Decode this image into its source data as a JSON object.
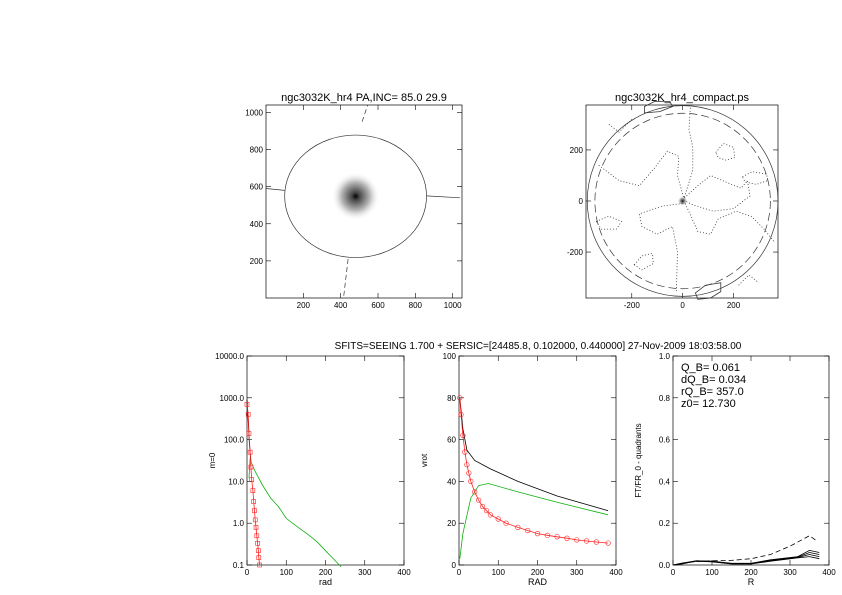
{
  "supertitle": "SFITS=SEEING 1.700 + SERSIC=[24485.8, 0.102000, 0.440000]  27-Nov-2009 18:03:58.00",
  "colors": {
    "axis": "#000000",
    "red": "#ff2020",
    "green": "#10b010",
    "black": "#000000"
  },
  "chart_data": [
    {
      "id": "p1",
      "type": "image-contour",
      "title": "ngc3032K_hr4 PA,INC= 85.0 29.9",
      "xlim": [
        0,
        1050
      ],
      "ylim": [
        0,
        1040
      ],
      "xticks": [
        "200",
        "400",
        "600",
        "800",
        "1000"
      ],
      "yticks": [
        "200",
        "400",
        "600",
        "800",
        "1000"
      ],
      "source_center": [
        480,
        548
      ],
      "ellipse": {
        "cx": 480,
        "cy": 548,
        "rx": 380,
        "ry": 330
      },
      "lines": [
        {
          "style": "solid",
          "points": [
            [
              0,
              590
            ],
            [
              100,
              580
            ]
          ]
        },
        {
          "style": "solid",
          "points": [
            [
              860,
              550
            ],
            [
              1040,
              540
            ]
          ]
        },
        {
          "style": "dashed",
          "points": [
            [
              515,
              950
            ],
            [
              545,
              1040
            ]
          ]
        },
        {
          "style": "dashed",
          "points": [
            [
              440,
              210
            ],
            [
              415,
              0
            ]
          ]
        }
      ]
    },
    {
      "id": "p2",
      "type": "contour",
      "title": "ngc3032K_hr4_compact.ps",
      "xlim": [
        -380,
        375
      ],
      "ylim": [
        -380,
        376
      ],
      "xticks": [
        "-200",
        "0",
        "200"
      ],
      "yticks": [
        "-200",
        "0",
        "200"
      ],
      "circles": [
        {
          "style": "solid",
          "r": 375
        },
        {
          "style": "dashed",
          "r": 345
        }
      ],
      "contours": [
        {
          "style": "dotted",
          "points": [
            [
              -330,
              140
            ],
            [
              -250,
              80
            ],
            [
              -170,
              60
            ],
            [
              -110,
              130
            ],
            [
              -60,
              195
            ],
            [
              -15,
              175
            ],
            [
              -20,
              100
            ],
            [
              5,
              10
            ],
            [
              60,
              60
            ],
            [
              110,
              100
            ],
            [
              180,
              70
            ],
            [
              230,
              50
            ],
            [
              255,
              80
            ],
            [
              265,
              20
            ],
            [
              200,
              -30
            ],
            [
              120,
              -40
            ],
            [
              40,
              -15
            ],
            [
              10,
              0
            ]
          ]
        },
        {
          "style": "dotted",
          "points": [
            [
              30,
              365
            ],
            [
              25,
              280
            ],
            [
              40,
              210
            ],
            [
              40,
              120
            ],
            [
              5,
              10
            ]
          ]
        },
        {
          "style": "dotted",
          "points": [
            [
              0,
              -10
            ],
            [
              -80,
              -20
            ],
            [
              -170,
              -50
            ],
            [
              -160,
              -100
            ],
            [
              -100,
              -130
            ],
            [
              -40,
              -100
            ],
            [
              -20,
              -200
            ],
            [
              -25,
              -360
            ]
          ]
        },
        {
          "style": "dotted",
          "points": [
            [
              10,
              -10
            ],
            [
              60,
              -120
            ],
            [
              110,
              -130
            ],
            [
              140,
              -70
            ],
            [
              210,
              -40
            ],
            [
              270,
              -60
            ],
            [
              320,
              -110
            ],
            [
              360,
              -160
            ]
          ]
        },
        {
          "style": "dotted",
          "closed": true,
          "points": [
            [
              130,
              190
            ],
            [
              160,
              225
            ],
            [
              200,
              210
            ],
            [
              205,
              170
            ],
            [
              170,
              160
            ],
            [
              140,
              170
            ]
          ]
        },
        {
          "style": "dotted",
          "closed": true,
          "points": [
            [
              235,
              95
            ],
            [
              275,
              115
            ],
            [
              330,
              105
            ],
            [
              335,
              80
            ],
            [
              290,
              65
            ],
            [
              245,
              75
            ]
          ]
        },
        {
          "style": "dotted",
          "closed": true,
          "points": [
            [
              -340,
              -80
            ],
            [
              -290,
              -60
            ],
            [
              -240,
              -80
            ],
            [
              -260,
              -110
            ],
            [
              -320,
              -110
            ]
          ]
        },
        {
          "style": "dotted",
          "closed": true,
          "points": [
            [
              -190,
              -250
            ],
            [
              -160,
              -215
            ],
            [
              -120,
              -205
            ],
            [
              -115,
              -245
            ],
            [
              -160,
              -270
            ]
          ]
        },
        {
          "style": "dotted",
          "points": [
            [
              -290,
              300
            ],
            [
              -250,
              270
            ],
            [
              -200,
              320
            ]
          ]
        },
        {
          "style": "dotted",
          "points": [
            [
              220,
              -330
            ],
            [
              260,
              -290
            ],
            [
              300,
              -320
            ]
          ]
        },
        {
          "style": "solid",
          "closed": true,
          "points": [
            [
              -150,
              345
            ],
            [
              -90,
              350
            ],
            [
              -40,
              370
            ],
            [
              -50,
              390
            ],
            [
              -110,
              390
            ],
            [
              -150,
              370
            ]
          ]
        },
        {
          "style": "solid",
          "closed": true,
          "points": [
            [
              50,
              -360
            ],
            [
              90,
              -330
            ],
            [
              150,
              -320
            ],
            [
              150,
              -355
            ],
            [
              110,
              -380
            ],
            [
              60,
              -385
            ]
          ]
        }
      ]
    },
    {
      "id": "p3",
      "type": "line",
      "yscale": "log",
      "xlabel": "rad",
      "ylabel": "m=0",
      "xlim": [
        0,
        400
      ],
      "ylim": [
        0.1,
        10000
      ],
      "xticks": [
        "0",
        "100",
        "200",
        "300",
        "400"
      ],
      "yticks": [
        "0.1",
        "1.0",
        "10.0",
        "100.0",
        "1000.0",
        "10000.0"
      ],
      "series": [
        {
          "color": "black",
          "x": [
            0,
            3,
            6,
            10
          ],
          "y": [
            900,
            300,
            80,
            30
          ]
        },
        {
          "color": "green",
          "x": [
            5,
            8,
            10,
            20,
            40,
            60,
            80,
            100,
            130,
            160,
            180,
            200,
            220,
            240
          ],
          "y": [
            12,
            35,
            30,
            18,
            8,
            4,
            2.5,
            1.3,
            0.8,
            0.5,
            0.35,
            0.22,
            0.14,
            0.09
          ]
        },
        {
          "color": "red",
          "marker": "square",
          "x": [
            0,
            3,
            5,
            8,
            10,
            12,
            15,
            17,
            19,
            21,
            23,
            25,
            27,
            29,
            30,
            32
          ],
          "y": [
            700,
            400,
            140,
            50,
            22,
            11,
            6,
            3.3,
            2,
            1.2,
            0.8,
            0.5,
            0.33,
            0.22,
            0.15,
            0.1
          ]
        }
      ]
    },
    {
      "id": "p4",
      "type": "line",
      "xlabel": "RAD",
      "ylabel": "vrot",
      "xlim": [
        0,
        400
      ],
      "ylim": [
        0,
        100
      ],
      "xticks": [
        "0",
        "100",
        "200",
        "300",
        "400"
      ],
      "yticks": [
        "0",
        "20",
        "40",
        "60",
        "80",
        "100"
      ],
      "series": [
        {
          "color": "black",
          "x": [
            2,
            10,
            20,
            40,
            80,
            150,
            250,
            380
          ],
          "y": [
            80,
            65,
            55,
            50,
            46,
            40,
            33,
            26
          ]
        },
        {
          "color": "green",
          "x": [
            2,
            10,
            30,
            50,
            75,
            150,
            250,
            380
          ],
          "y": [
            3,
            15,
            32,
            38,
            39,
            35,
            30,
            24
          ]
        },
        {
          "color": "red",
          "marker": "circle",
          "x": [
            2,
            5,
            10,
            15,
            20,
            25,
            30,
            40,
            50,
            60,
            70,
            80,
            100,
            120,
            150,
            175,
            200,
            225,
            250,
            275,
            300,
            325,
            350,
            380
          ],
          "y": [
            80,
            72,
            62,
            54,
            48,
            44,
            40,
            35,
            31,
            28,
            26,
            24,
            22,
            20,
            18,
            16.5,
            15,
            14.2,
            13.5,
            12.8,
            12,
            11.5,
            11,
            10.5
          ]
        }
      ]
    },
    {
      "id": "p5",
      "type": "line",
      "xlabel": "R",
      "ylabel": "FT/FR_0 - quadrants",
      "xlim": [
        0,
        400
      ],
      "ylim": [
        0,
        1
      ],
      "xticks": [
        "0",
        "100",
        "200",
        "300",
        "400"
      ],
      "yticks": [
        "0.0",
        "0.2",
        "0.4",
        "0.6",
        "0.8",
        "1.0"
      ],
      "annotations": [
        "Q_B=  0.061",
        "dQ_B=  0.034",
        "rQ_B=  357.0",
        "z0= 12.730"
      ],
      "series": [
        {
          "color": "black",
          "style": "dashed",
          "x": [
            0,
            50,
            100,
            150,
            200,
            250,
            300,
            350,
            365
          ],
          "y": [
            0,
            0.015,
            0.02,
            0.022,
            0.03,
            0.05,
            0.09,
            0.14,
            0.12
          ]
        },
        {
          "color": "black",
          "x": [
            0,
            20,
            60,
            100,
            150,
            200,
            250,
            320,
            350,
            375
          ],
          "y": [
            0,
            0.005,
            0.02,
            0.018,
            0.008,
            0.008,
            0.025,
            0.04,
            0.07,
            0.06
          ]
        },
        {
          "color": "black",
          "x": [
            0,
            20,
            60,
            100,
            150,
            200,
            250,
            320,
            350,
            375
          ],
          "y": [
            0,
            0.008,
            0.02,
            0.017,
            0.007,
            0.007,
            0.022,
            0.038,
            0.06,
            0.05
          ]
        },
        {
          "color": "black",
          "x": [
            0,
            20,
            60,
            100,
            150,
            200,
            250,
            320,
            350,
            375
          ],
          "y": [
            0,
            0.004,
            0.019,
            0.016,
            0.006,
            0.006,
            0.02,
            0.036,
            0.05,
            0.04
          ]
        },
        {
          "color": "black",
          "x": [
            0,
            20,
            60,
            100,
            150,
            200,
            250,
            320,
            350,
            375
          ],
          "y": [
            0,
            0.006,
            0.018,
            0.015,
            0.005,
            0.005,
            0.018,
            0.034,
            0.04,
            0.03
          ]
        }
      ]
    }
  ]
}
